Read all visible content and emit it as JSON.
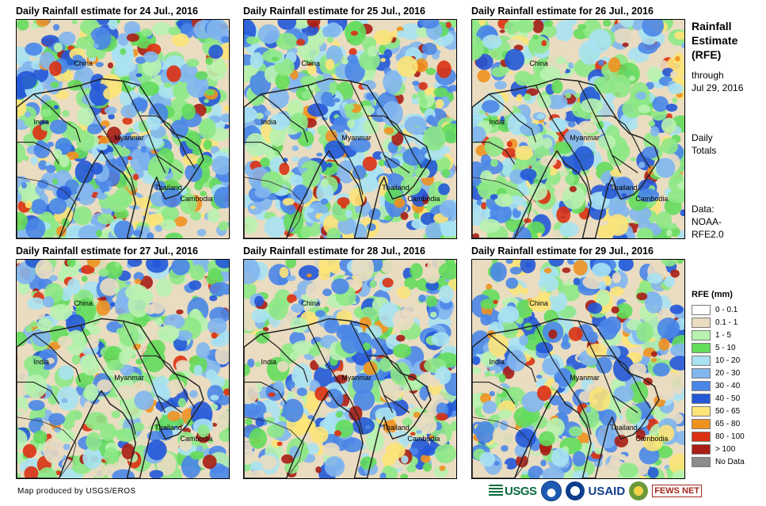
{
  "panels": [
    {
      "title": "Daily Rainfall estimate for 24 Jul., 2016",
      "labels": {
        "china": "China",
        "india": "India",
        "myanmar": "Myanmar",
        "thailand": "Thailand",
        "cambodia": "Cambodia"
      },
      "palette": [
        "#b8f2b0",
        "#8ee886",
        "#8ee886",
        "#64dc5c",
        "#a8e2f2",
        "#82b6ee",
        "#82b6ee",
        "#4a86e8",
        "#4a86e8",
        "#2458d8",
        "#fde478",
        "#f09120",
        "#dc3112",
        "#a81d14"
      ]
    },
    {
      "title": "Daily Rainfall estimate for 25 Jul., 2016",
      "labels": {
        "china": "China",
        "india": "India",
        "myanmar": "Myanmar",
        "thailand": "Thailand",
        "cambodia": "Cambodia"
      },
      "palette": [
        "#b8f2b0",
        "#8ee886",
        "#8ee886",
        "#64dc5c",
        "#a8e2f2",
        "#a8e2f2",
        "#82b6ee",
        "#82b6ee",
        "#4a86e8",
        "#4a86e8",
        "#2458d8",
        "#fde478",
        "#f09120",
        "#dc3112",
        "#a81d14"
      ]
    },
    {
      "title": "Daily Rainfall estimate for 26 Jul., 2016",
      "labels": {
        "china": "China",
        "india": "India",
        "myanmar": "Myanmar",
        "thailand": "Thailand",
        "cambodia": "Cambodia"
      },
      "palette": [
        "#e9dcc1",
        "#b8f2b0",
        "#8ee886",
        "#8ee886",
        "#64dc5c",
        "#a8e2f2",
        "#82b6ee",
        "#4a86e8",
        "#2458d8",
        "#fde478",
        "#f09120",
        "#dc3112",
        "#a81d14"
      ]
    },
    {
      "title": "Daily Rainfall estimate for 27 Jul., 2016",
      "labels": {
        "china": "China",
        "india": "India",
        "myanmar": "Myanmar",
        "thailand": "Thailand",
        "cambodia": "Cambodia"
      },
      "palette": [
        "#e9dcc1",
        "#e9dcc1",
        "#b8f2b0",
        "#8ee886",
        "#8ee886",
        "#64dc5c",
        "#a8e2f2",
        "#82b6ee",
        "#4a86e8",
        "#2458d8",
        "#f09120",
        "#dc3112",
        "#a81d14"
      ]
    },
    {
      "title": "Daily Rainfall estimate for 28 Jul., 2016",
      "labels": {
        "china": "China",
        "india": "India",
        "myanmar": "Myanmar",
        "thailand": "Thailand",
        "cambodia": "Cambodia"
      },
      "palette": [
        "#e9dcc1",
        "#e9dcc1",
        "#b8f2b0",
        "#8ee886",
        "#64dc5c",
        "#a8e2f2",
        "#82b6ee",
        "#4a86e8",
        "#4a86e8",
        "#2458d8",
        "#fde478",
        "#f09120",
        "#dc3112",
        "#a81d14"
      ]
    },
    {
      "title": "Daily Rainfall estimate for 29 Jul., 2016",
      "labels": {
        "china": "China",
        "india": "India",
        "myanmar": "Myanmar",
        "thailand": "Thailand",
        "cambodia": "Cambodia"
      },
      "palette": [
        "#e9dcc1",
        "#e9dcc1",
        "#b8f2b0",
        "#8ee886",
        "#64dc5c",
        "#a8e2f2",
        "#82b6ee",
        "#4a86e8",
        "#4a86e8",
        "#2458d8",
        "#fde478",
        "#f09120",
        "#dc3112",
        "#a81d14"
      ]
    }
  ],
  "sidebar": {
    "title_line1": "Rainfall",
    "title_line2": "Estimate",
    "title_line3": "(RFE)",
    "through_label": "through",
    "through_date": "Jul 29, 2016",
    "daily_line1": "Daily",
    "daily_line2": "Totals",
    "data_line1": "Data:",
    "data_line2": "NOAA-",
    "data_line3": "RFE2.0"
  },
  "legend": {
    "title": "RFE (mm)",
    "items": [
      {
        "label": "0 - 0.1",
        "color": "#ffffff"
      },
      {
        "label": "0.1 - 1",
        "color": "#e9dcc1"
      },
      {
        "label": "1 - 5",
        "color": "#b8f2b0"
      },
      {
        "label": "5 - 10",
        "color": "#64dc5c"
      },
      {
        "label": "10 - 20",
        "color": "#a8e2f2"
      },
      {
        "label": "20 - 30",
        "color": "#82b6ee"
      },
      {
        "label": "30 - 40",
        "color": "#4a86e8"
      },
      {
        "label": "40 - 50",
        "color": "#2458d8"
      },
      {
        "label": "50 - 65",
        "color": "#fde478"
      },
      {
        "label": "65 - 80",
        "color": "#f09120"
      },
      {
        "label": "80 - 100",
        "color": "#dc3112"
      },
      {
        "label": "> 100",
        "color": "#a81d14"
      },
      {
        "label": "No Data",
        "color": "#8c8c8c"
      }
    ]
  },
  "credit": "Map produced by USGS/EROS",
  "logos": {
    "usgs": "USGS",
    "noaa": "noaa-logo",
    "usaid": "USAID",
    "fews": "FEWS NET"
  }
}
